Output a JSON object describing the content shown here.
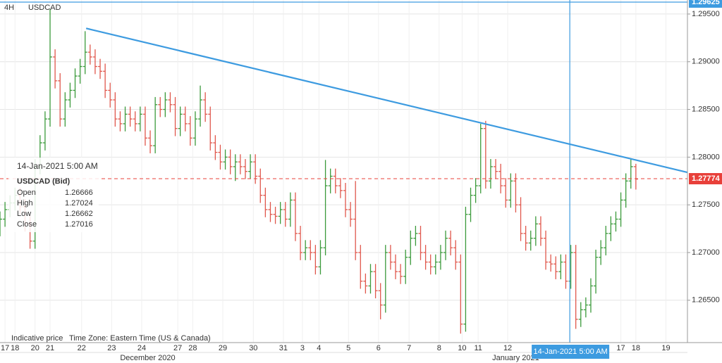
{
  "header": {
    "interval": "4H",
    "symbol": "USDCAD"
  },
  "chart_data": {
    "type": "ohlc",
    "open": [
      1.2725,
      1.2735,
      1.2745,
      1.2752,
      1.276,
      1.2748,
      1.273,
      1.2712,
      1.279,
      1.2815,
      1.284,
      1.2905,
      1.288,
      1.284,
      1.286,
      1.287,
      1.2885,
      1.2895,
      1.291,
      1.2905,
      1.2895,
      1.289,
      1.287,
      1.286,
      1.284,
      1.2835,
      1.2845,
      1.284,
      1.2835,
      1.2845,
      1.282,
      1.2812,
      1.2855,
      1.285,
      1.286,
      1.2855,
      1.283,
      1.2845,
      1.2835,
      1.282,
      1.284,
      1.286,
      1.2845,
      1.2815,
      1.2805,
      1.2795,
      1.28,
      1.279,
      1.2795,
      1.279,
      1.2785,
      1.2795,
      1.278,
      1.276,
      1.2745,
      1.274,
      1.2738,
      1.2745,
      1.2735,
      1.2755,
      1.272,
      1.27,
      1.2705,
      1.27,
      1.2685,
      1.2705,
      1.277,
      1.278,
      1.277,
      1.2765,
      1.2745,
      1.2735,
      1.27,
      1.267,
      1.2665,
      1.268,
      1.266,
      1.2645,
      1.27,
      1.269,
      1.268,
      1.2675,
      1.2695,
      1.2715,
      1.272,
      1.27,
      1.269,
      1.2685,
      1.269,
      1.27,
      1.2715,
      1.2705,
      1.269,
      1.2625,
      1.274,
      1.276,
      1.277,
      1.283,
      1.2775,
      1.279,
      1.2785,
      1.277,
      1.2755,
      1.2775,
      1.275,
      1.272,
      1.271,
      1.2715,
      1.273,
      1.2715,
      1.269,
      1.2688,
      1.268,
      1.269,
      1.267,
      1.27,
      1.263,
      1.264,
      1.2645,
      1.2665,
      1.2695,
      1.2705,
      1.272,
      1.273,
      1.2735,
      1.2755,
      1.2775,
      1.279
    ],
    "high": [
      1.2743,
      1.2753,
      1.276,
      1.2768,
      1.2768,
      1.2756,
      1.2738,
      1.2798,
      1.2823,
      1.2848,
      1.2955,
      1.2913,
      1.2888,
      1.2868,
      1.2878,
      1.2893,
      1.2903,
      1.2932,
      1.2918,
      1.2913,
      1.2903,
      1.2898,
      1.2878,
      1.2868,
      1.2848,
      1.2853,
      1.2853,
      1.2848,
      1.2853,
      1.2853,
      1.2828,
      1.2863,
      1.2863,
      1.2868,
      1.2868,
      1.2863,
      1.2853,
      1.2853,
      1.2843,
      1.2848,
      1.2875,
      1.2868,
      1.2853,
      1.2823,
      1.2813,
      1.2808,
      1.2808,
      1.2803,
      1.2803,
      1.2798,
      1.2803,
      1.2803,
      1.2788,
      1.2768,
      1.2753,
      1.2748,
      1.2753,
      1.2753,
      1.2763,
      1.2763,
      1.2728,
      1.2713,
      1.2713,
      1.2708,
      1.2713,
      1.2797,
      1.2788,
      1.2788,
      1.2778,
      1.2773,
      1.2753,
      1.2775,
      1.2708,
      1.2678,
      1.2688,
      1.2688,
      1.2668,
      1.2708,
      1.2708,
      1.2698,
      1.2688,
      1.2703,
      1.2723,
      1.2728,
      1.2728,
      1.2708,
      1.2698,
      1.2698,
      1.2708,
      1.2723,
      1.2723,
      1.2713,
      1.2698,
      1.2748,
      1.2768,
      1.2778,
      1.2835,
      1.2838,
      1.2798,
      1.2798,
      1.2793,
      1.2778,
      1.2783,
      1.2783,
      1.2758,
      1.2728,
      1.2723,
      1.2738,
      1.2738,
      1.2723,
      1.2698,
      1.2696,
      1.2698,
      1.2698,
      1.2708,
      1.2708,
      1.2648,
      1.2653,
      1.2673,
      1.2703,
      1.2713,
      1.2728,
      1.2738,
      1.2743,
      1.2763,
      1.2783,
      1.2798,
      1.2793
    ],
    "low": [
      1.2717,
      1.2727,
      1.2737,
      1.2744,
      1.274,
      1.2722,
      1.2704,
      1.2704,
      1.2782,
      1.2807,
      1.2832,
      1.2872,
      1.2832,
      1.2832,
      1.2852,
      1.2862,
      1.2877,
      1.2887,
      1.2897,
      1.2887,
      1.2882,
      1.2862,
      1.2852,
      1.2832,
      1.2827,
      1.2827,
      1.2832,
      1.2827,
      1.2827,
      1.2812,
      1.2804,
      1.2804,
      1.2842,
      1.2842,
      1.2847,
      1.2822,
      1.2822,
      1.2827,
      1.2812,
      1.2812,
      1.2832,
      1.2837,
      1.2807,
      1.2797,
      1.2787,
      1.2787,
      1.2782,
      1.2775,
      1.2782,
      1.2777,
      1.2777,
      1.2772,
      1.2752,
      1.2737,
      1.2732,
      1.273,
      1.273,
      1.2727,
      1.2727,
      1.2712,
      1.2692,
      1.2692,
      1.2692,
      1.2677,
      1.2677,
      1.2697,
      1.2762,
      1.2762,
      1.2757,
      1.2737,
      1.2727,
      1.2692,
      1.2662,
      1.2657,
      1.2657,
      1.2652,
      1.263,
      1.2637,
      1.2682,
      1.2672,
      1.2667,
      1.2667,
      1.2687,
      1.2707,
      1.2692,
      1.2682,
      1.2677,
      1.2677,
      1.2682,
      1.2692,
      1.2697,
      1.2682,
      1.2615,
      1.2617,
      1.2732,
      1.2752,
      1.2762,
      1.2767,
      1.2767,
      1.2777,
      1.2762,
      1.2747,
      1.2747,
      1.2742,
      1.2712,
      1.2702,
      1.2702,
      1.2707,
      1.2707,
      1.2682,
      1.268,
      1.2672,
      1.2672,
      1.2662,
      1.2662,
      1.262,
      1.2622,
      1.2632,
      1.2637,
      1.2657,
      1.2687,
      1.2697,
      1.2712,
      1.2722,
      1.2727,
      1.2747,
      1.2767,
      1.2766
    ],
    "close": [
      1.2735,
      1.2745,
      1.2752,
      1.276,
      1.2748,
      1.273,
      1.2712,
      1.279,
      1.2815,
      1.284,
      1.2905,
      1.288,
      1.284,
      1.286,
      1.287,
      1.2885,
      1.2895,
      1.291,
      1.2905,
      1.2895,
      1.289,
      1.287,
      1.286,
      1.284,
      1.2835,
      1.2845,
      1.284,
      1.2835,
      1.2845,
      1.282,
      1.2812,
      1.2855,
      1.285,
      1.286,
      1.2855,
      1.283,
      1.2845,
      1.2835,
      1.282,
      1.284,
      1.286,
      1.2845,
      1.2815,
      1.2805,
      1.2795,
      1.28,
      1.279,
      1.2795,
      1.279,
      1.2785,
      1.2795,
      1.278,
      1.276,
      1.2745,
      1.274,
      1.2738,
      1.2745,
      1.2735,
      1.2755,
      1.272,
      1.27,
      1.2705,
      1.27,
      1.2685,
      1.2705,
      1.277,
      1.278,
      1.277,
      1.2765,
      1.2745,
      1.2735,
      1.27,
      1.267,
      1.2665,
      1.268,
      1.266,
      1.2645,
      1.27,
      1.269,
      1.268,
      1.2675,
      1.2695,
      1.2715,
      1.272,
      1.27,
      1.269,
      1.2685,
      1.269,
      1.27,
      1.2715,
      1.2705,
      1.269,
      1.2625,
      1.274,
      1.276,
      1.277,
      1.283,
      1.2775,
      1.279,
      1.2785,
      1.277,
      1.2755,
      1.2775,
      1.275,
      1.272,
      1.271,
      1.2715,
      1.273,
      1.2715,
      1.269,
      1.2688,
      1.268,
      1.269,
      1.267,
      1.27,
      1.263,
      1.264,
      1.2645,
      1.2665,
      1.2695,
      1.2705,
      1.272,
      1.273,
      1.2735,
      1.2755,
      1.2775,
      1.279,
      1.2777
    ],
    "up_color": "#3b9a3b",
    "down_color": "#e0574c",
    "xlim": [
      0,
      137.3
    ],
    "xticks": [
      {
        "value": 1,
        "label": "17"
      },
      {
        "value": 3,
        "label": "18"
      },
      {
        "value": 7,
        "label": "20"
      },
      {
        "value": 10,
        "label": "21"
      },
      {
        "value": 16.3,
        "label": "22"
      },
      {
        "value": 22.3,
        "label": "23"
      },
      {
        "value": 28.3,
        "label": "24"
      },
      {
        "value": 35.5,
        "label": "27"
      },
      {
        "value": 38.5,
        "label": "28"
      },
      {
        "value": 44.5,
        "label": "29"
      },
      {
        "value": 50.6,
        "label": "30"
      },
      {
        "value": 56.6,
        "label": "31"
      },
      {
        "value": 60.4,
        "label": "3"
      },
      {
        "value": 63.7,
        "label": "4"
      },
      {
        "value": 69.6,
        "label": "5"
      },
      {
        "value": 75.6,
        "label": "6"
      },
      {
        "value": 81.7,
        "label": "7"
      },
      {
        "value": 87.7,
        "label": "8"
      },
      {
        "value": 92.3,
        "label": "10"
      },
      {
        "value": 95.5,
        "label": "11"
      },
      {
        "value": 101.4,
        "label": "12"
      },
      {
        "value": 124,
        "label": "17"
      },
      {
        "value": 127,
        "label": "18"
      },
      {
        "value": 133,
        "label": "19"
      }
    ],
    "month_labels": [
      {
        "value": 29.5,
        "label": "December 2020"
      },
      {
        "value": 103,
        "label": "January 2021"
      }
    ],
    "ylim": [
      1.26056,
      1.29647
    ],
    "yticks": [
      {
        "value": 1.265,
        "label": "1.26500"
      },
      {
        "value": 1.27,
        "label": "1.27000"
      },
      {
        "value": 1.275,
        "label": "1.27500"
      },
      {
        "value": 1.28,
        "label": "1.28000"
      },
      {
        "value": 1.285,
        "label": "1.28500"
      },
      {
        "value": 1.29,
        "label": "1.29000"
      },
      {
        "value": 1.295,
        "label": "1.29500"
      }
    ],
    "grid": true,
    "trendline": {
      "x": [
        17.2,
        137.3
      ],
      "y": [
        1.2935,
        1.2784
      ],
      "color": "#3d9be0"
    },
    "current_price": 1.27774,
    "current_color": "#e8403a",
    "marker_line": 1.29625,
    "marker_color": "#3d9be0",
    "crosshair": {
      "x": 113.8,
      "label": "14-Jan-2021 5:00 AM"
    },
    "info": {
      "date": "14-Jan-2021 5:00 AM",
      "title": "USDCAD (Bid)",
      "rows": [
        {
          "label": "Open",
          "value": 1.26666
        },
        {
          "label": "High",
          "value": 1.27024
        },
        {
          "label": "Low",
          "value": 1.26662
        },
        {
          "label": "Close",
          "value": 1.27016
        }
      ]
    },
    "footer": {
      "note": "Indicative price",
      "timezone": "Time Zone: Eastern Time (US & Canada)"
    }
  }
}
